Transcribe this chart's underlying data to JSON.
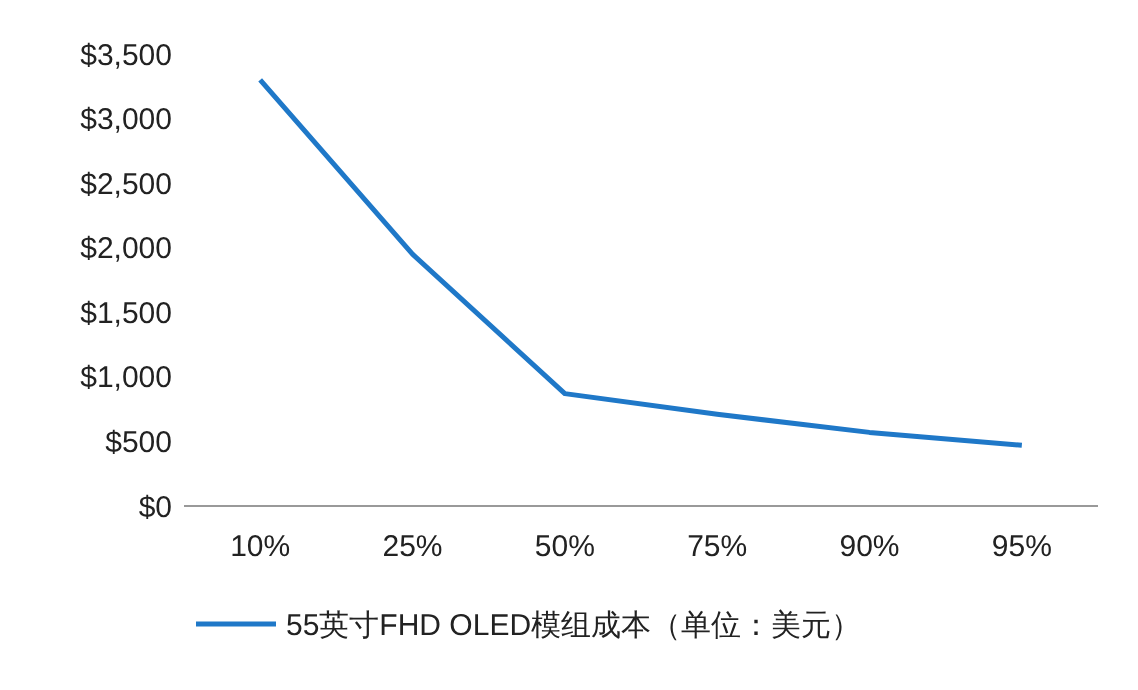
{
  "chart_data": {
    "type": "line",
    "categories": [
      "10%",
      "25%",
      "50%",
      "75%",
      "90%",
      "95%"
    ],
    "series": [
      {
        "name": "55英寸FHD OLED模组成本（单位：美元）",
        "color": "#1f78c8",
        "values": [
          3300,
          1950,
          870,
          710,
          570,
          470
        ]
      }
    ],
    "ylim": [
      0,
      3500
    ],
    "yticks": [
      {
        "value": 0,
        "label": "$0"
      },
      {
        "value": 500,
        "label": "$500"
      },
      {
        "value": 1000,
        "label": "$1,000"
      },
      {
        "value": 1500,
        "label": "$1,500"
      },
      {
        "value": 2000,
        "label": "$2,000"
      },
      {
        "value": 2500,
        "label": "$2,500"
      },
      {
        "value": 3000,
        "label": "$3,000"
      },
      {
        "value": 3500,
        "label": "$3,500"
      }
    ],
    "grid": false,
    "legend": "bottom",
    "marker": "none",
    "line_style": "solid"
  }
}
